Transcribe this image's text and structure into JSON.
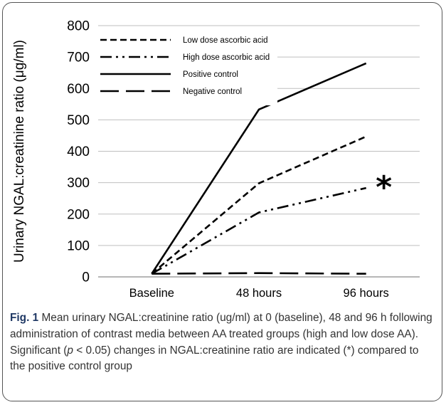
{
  "chart_data": {
    "type": "line",
    "categories": [
      "Baseline",
      "48 hours",
      "96 hours"
    ],
    "ylabel": "Urinary NGAL:creatinine ratio (μg/ml)",
    "ylim": [
      0,
      800
    ],
    "yticks": [
      0,
      100,
      200,
      300,
      400,
      500,
      600,
      700,
      800
    ],
    "grid": true,
    "legend": "top-left",
    "series": [
      {
        "name": "Low dose ascorbic acid",
        "values": [
          10,
          298,
          447
        ],
        "style": "short-dash"
      },
      {
        "name": "High dose ascorbic acid",
        "values": [
          10,
          205,
          283
        ],
        "style": "dash-dot-dot"
      },
      {
        "name": "Positive control",
        "values": [
          10,
          533,
          680
        ],
        "style": "solid"
      },
      {
        "name": "Negative control",
        "values": [
          10,
          12,
          10
        ],
        "style": "long-dash"
      }
    ],
    "annotation": {
      "text": "*",
      "series": "High dose ascorbic acid",
      "category": "96 hours"
    },
    "line_color": "#000000",
    "grid_color": "#bfbfbf"
  },
  "caption": {
    "label": "Fig. 1",
    "part1": " Mean urinary NGAL:creatinine ratio (ug/ml) at 0 (baseline), 48 and 96 h following administration of contrast media between AA treated groups (high and low dose AA). Significant (",
    "p_symbol": "p",
    "part2": " < 0.05) changes in NGAL:creatinine ratio are indicated (*) compared to the positive control group"
  }
}
